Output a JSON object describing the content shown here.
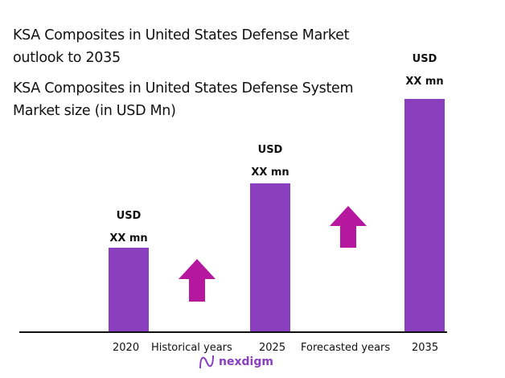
{
  "titles": {
    "main": "KSA Composites in United States Defense Market outlook to 2035",
    "sub": "KSA Composites in United States Defense System Market size (in USD Mn)"
  },
  "chart_data": {
    "type": "bar",
    "title": "KSA Composites in United States Defense System Market size (in USD Mn)",
    "categories": [
      "2020",
      "2025",
      "2035"
    ],
    "data_labels": [
      {
        "line1": "USD",
        "line2": "XX mn"
      },
      {
        "line1": "USD",
        "line2": "XX mn"
      },
      {
        "line1": "USD",
        "line2": "XX mn"
      }
    ],
    "period_labels": [
      "Historical years",
      "Forecasted years"
    ],
    "bar_color": "#8a3fbf",
    "arrow_color": "#b5179e",
    "grid": false,
    "legend": "none"
  },
  "logo": {
    "text": "nexdigm"
  }
}
